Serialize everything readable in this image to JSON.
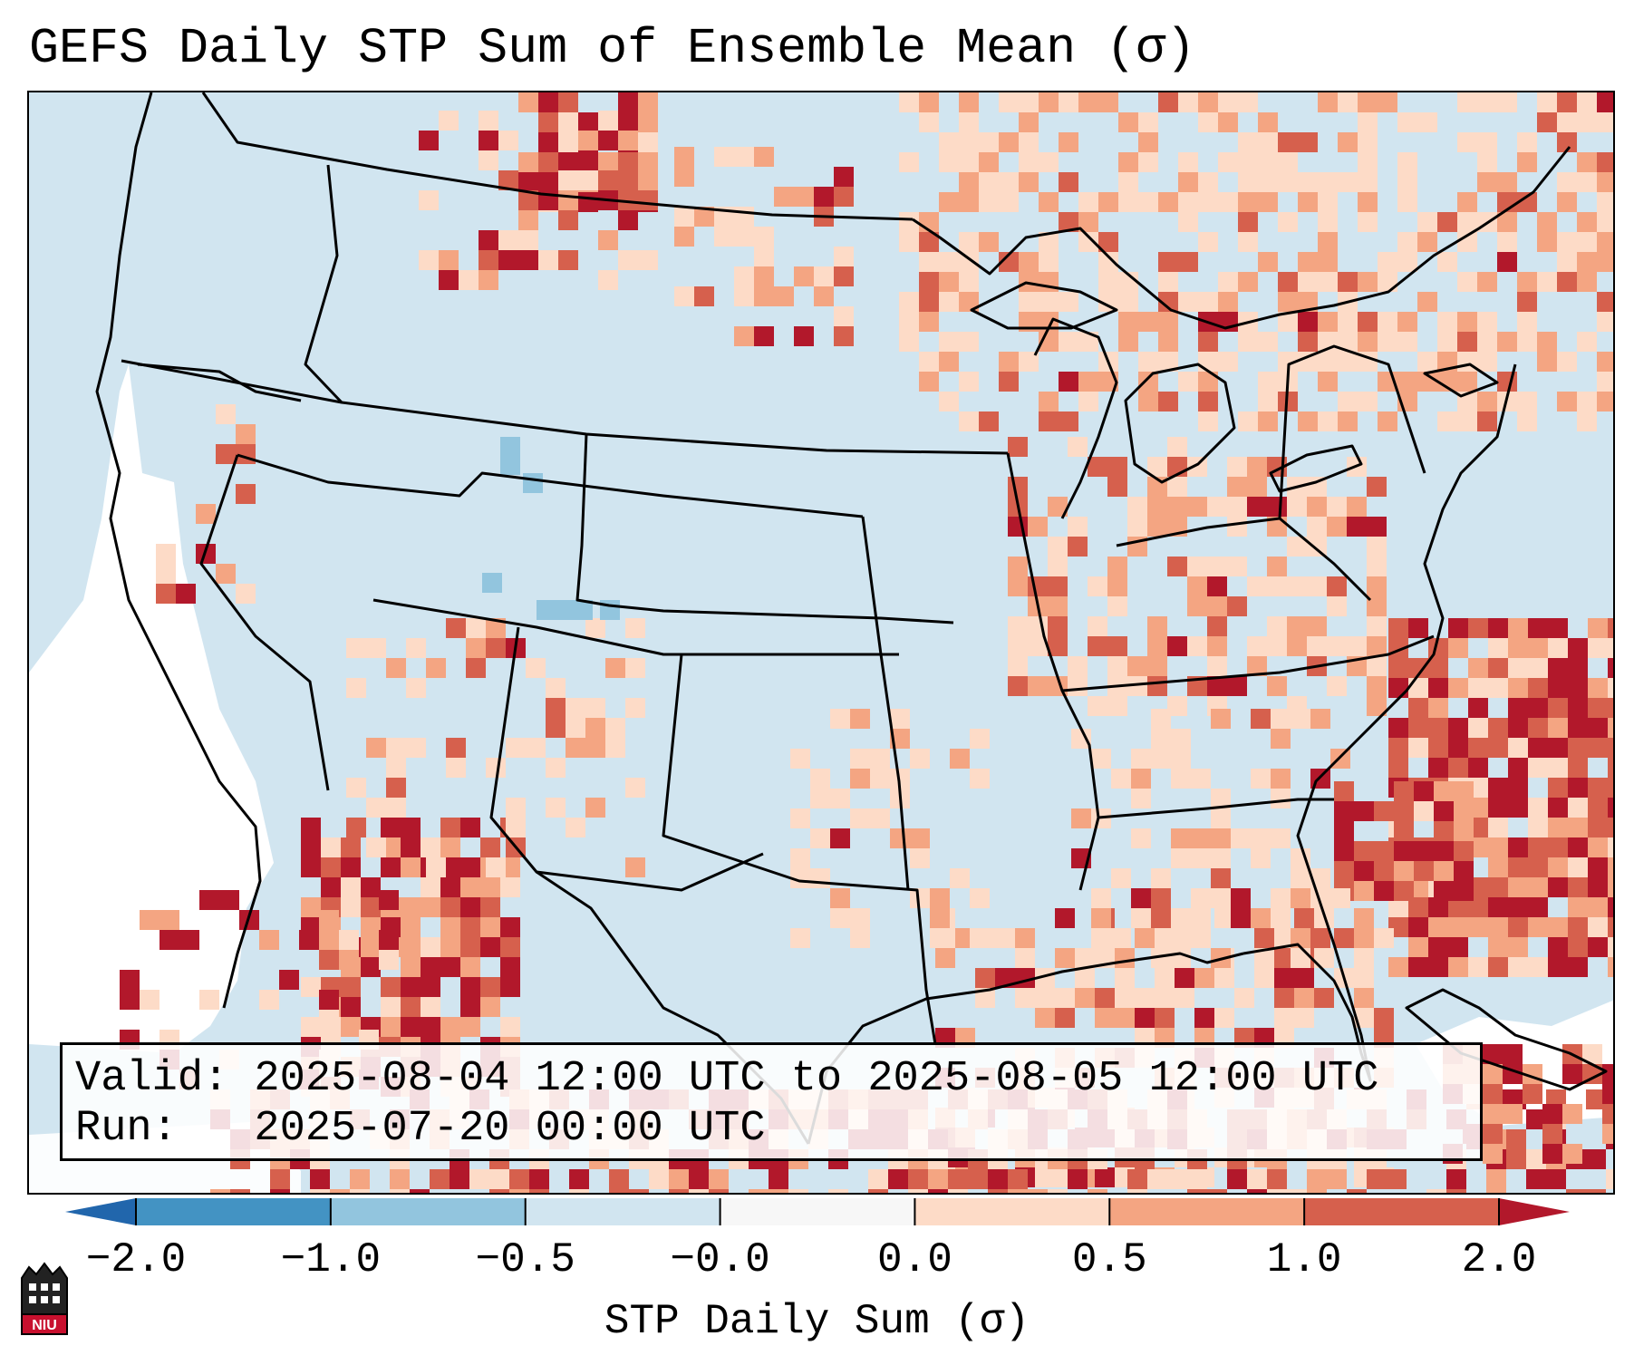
{
  "title": "GEFS Daily STP Sum of Ensemble Mean (σ)",
  "info": {
    "valid_line": "Valid: 2025-08-04 12:00 UTC to 2025-08-05 12:00 UTC",
    "run_line": "Run:   2025-07-20 00:00 UTC"
  },
  "colorbar": {
    "label": "STP Daily Sum (σ)",
    "ticks": [
      "−2.0",
      "−1.0",
      "−0.5",
      "−0.0",
      "0.0",
      "0.5",
      "1.0",
      "2.0"
    ],
    "under_color": "#2166ac",
    "over_color": "#b2182b",
    "segments": [
      {
        "from": "−2.0",
        "to": "−1.0",
        "color": "#4393c3"
      },
      {
        "from": "−1.0",
        "to": "−0.5",
        "color": "#92c5de"
      },
      {
        "from": "−0.5",
        "to": "−0.0",
        "color": "#d1e5f0"
      },
      {
        "from": "−0.0",
        "to": "0.0",
        "color": "#f7f7f7"
      },
      {
        "from": "0.0",
        "to": "0.5",
        "color": "#fddbc7"
      },
      {
        "from": "0.5",
        "to": "1.0",
        "color": "#f4a582"
      },
      {
        "from": "1.0",
        "to": "2.0",
        "color": "#d6604d"
      }
    ]
  },
  "map": {
    "projection": "Lambert Conformal (CONUS)",
    "colors": {
      "ocean": "#d1e5f0",
      "neutral": "#ffffff",
      "light_pos": "#fddbc7",
      "mid_pos": "#f4a582",
      "high_pos": "#d6604d",
      "max_pos": "#b2182b",
      "neg": "#92c5de"
    }
  },
  "logo": {
    "text": "NIU"
  }
}
